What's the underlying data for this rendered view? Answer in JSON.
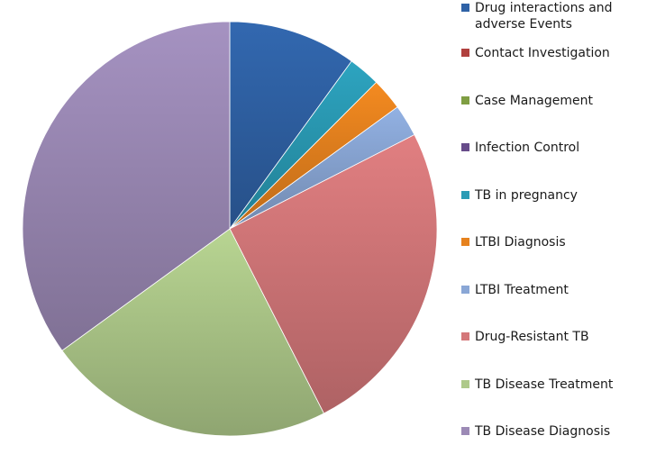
{
  "chart_data": {
    "type": "pie",
    "title": "",
    "legend_position": "right",
    "slices": [
      {
        "label": "Drug interactions and adverse Events",
        "value": 10,
        "color": "#2f62a6"
      },
      {
        "label": "Contact Investigation",
        "value": 0,
        "color": "#b0403e"
      },
      {
        "label": "Case Management",
        "value": 0,
        "color": "#7f9e43"
      },
      {
        "label": "Infection Control",
        "value": 0,
        "color": "#674c8a"
      },
      {
        "label": "TB in pregnancy",
        "value": 2.5,
        "color": "#2a9bb5"
      },
      {
        "label": "LTBI Diagnosis",
        "value": 2.5,
        "color": "#e6821e"
      },
      {
        "label": "LTBI Treatment",
        "value": 2.5,
        "color": "#8aa7d6"
      },
      {
        "label": "Drug-Resistant TB",
        "value": 25,
        "color": "#d4787a"
      },
      {
        "label": "TB Disease Treatment",
        "value": 22.5,
        "color": "#aec98a"
      },
      {
        "label": "TB Disease Diagnosis",
        "value": 35,
        "color": "#9c8ab6"
      }
    ]
  }
}
